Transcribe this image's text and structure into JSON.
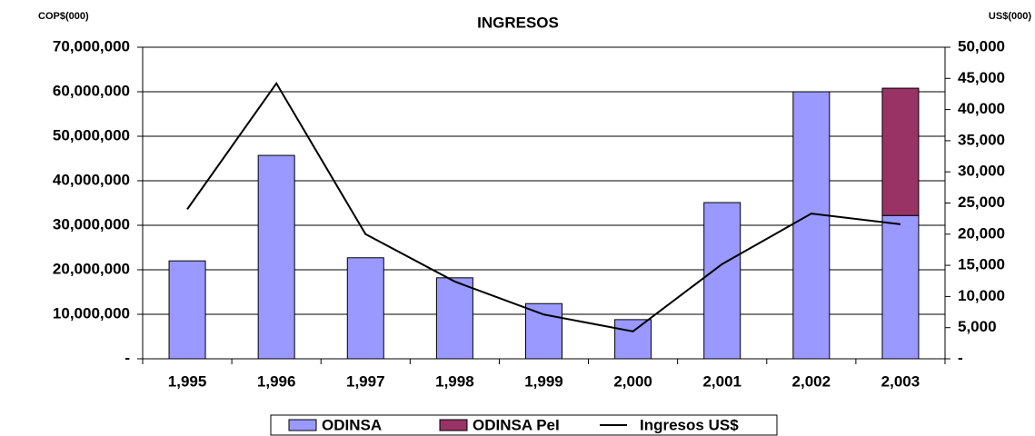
{
  "chart_data": {
    "type": "bar",
    "title": "INGRESOS",
    "ylabel": "COP$(000)",
    "y2label": "US$(000)",
    "categories": [
      "1,995",
      "1,996",
      "1,997",
      "1,998",
      "1,999",
      "2,000",
      "2,001",
      "2,002",
      "2,003"
    ],
    "stacked": true,
    "grid": true,
    "legend": "bottom",
    "series": [
      {
        "name": "ODINSA",
        "color": "#9999ff",
        "values": [
          22000000,
          45700000,
          22700000,
          18200000,
          12400000,
          8800000,
          35100000,
          60000000,
          32200000
        ]
      },
      {
        "name": "ODINSA PeI",
        "color": "#993366",
        "values": [
          null,
          null,
          null,
          null,
          null,
          null,
          null,
          null,
          28600000
        ]
      },
      {
        "name": "Ingresos US$",
        "color": "#000000",
        "type": "line",
        "axis": "y2",
        "values": [
          24000,
          44200,
          20000,
          12400,
          7100,
          4400,
          15200,
          23300,
          21600
        ]
      }
    ],
    "ylim": [
      0,
      70000000
    ],
    "yticks": [
      {
        "value": 0,
        "label": "-"
      },
      {
        "value": 10000000,
        "label": "10,000,000"
      },
      {
        "value": 20000000,
        "label": "20,000,000"
      },
      {
        "value": 30000000,
        "label": "30,000,000"
      },
      {
        "value": 40000000,
        "label": "40,000,000"
      },
      {
        "value": 50000000,
        "label": "50,000,000"
      },
      {
        "value": 60000000,
        "label": "60,000,000"
      },
      {
        "value": 70000000,
        "label": "70,000,000"
      }
    ],
    "y2lim": [
      0,
      50000
    ],
    "y2ticks": [
      {
        "value": 0,
        "label": "-"
      },
      {
        "value": 5000,
        "label": "5,000"
      },
      {
        "value": 10000,
        "label": "10,000"
      },
      {
        "value": 15000,
        "label": "15,000"
      },
      {
        "value": 20000,
        "label": "20,000"
      },
      {
        "value": 25000,
        "label": "25,000"
      },
      {
        "value": 30000,
        "label": "30,000"
      },
      {
        "value": 35000,
        "label": "35,000"
      },
      {
        "value": 40000,
        "label": "40,000"
      },
      {
        "value": 45000,
        "label": "45,000"
      },
      {
        "value": 50000,
        "label": "50,000"
      }
    ]
  }
}
